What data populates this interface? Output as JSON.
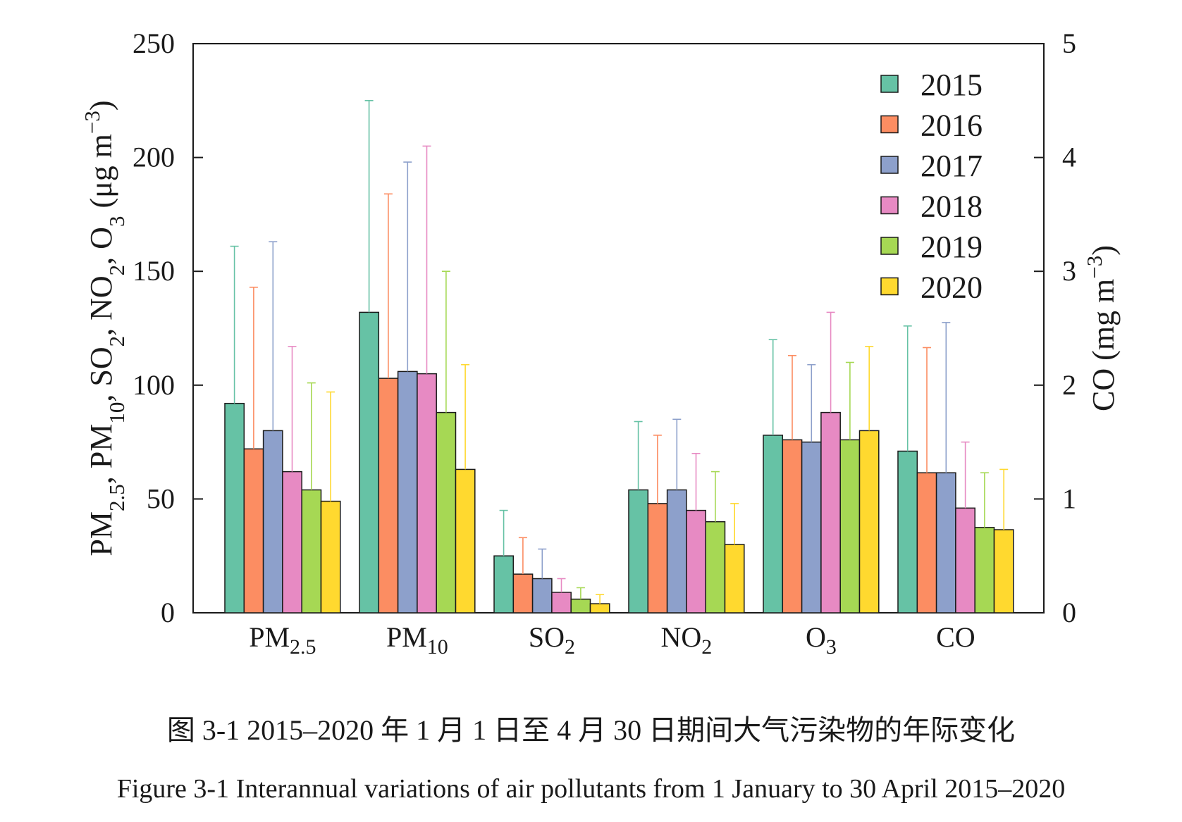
{
  "chart_data": {
    "type": "bar",
    "categories": [
      {
        "base": "PM",
        "sub": "2.5"
      },
      {
        "base": "PM",
        "sub": "10"
      },
      {
        "base": "SO",
        "sub": "2"
      },
      {
        "base": "NO",
        "sub": "2"
      },
      {
        "base": "O",
        "sub": "3"
      },
      {
        "base": "CO",
        "sub": ""
      }
    ],
    "series": [
      {
        "name": "2015",
        "color": "#66c2a5",
        "values": [
          92,
          132,
          25,
          54,
          78,
          1.42
        ],
        "upper": [
          161,
          225,
          45,
          84,
          120,
          2.52
        ]
      },
      {
        "name": "2016",
        "color": "#fc8d62",
        "values": [
          72,
          103,
          17,
          48,
          76,
          1.23
        ],
        "upper": [
          143,
          184,
          33,
          78,
          113,
          2.33
        ]
      },
      {
        "name": "2017",
        "color": "#8da0cb",
        "values": [
          80,
          106,
          15,
          54,
          75,
          1.23
        ],
        "upper": [
          163,
          198,
          28,
          85,
          109,
          2.55
        ]
      },
      {
        "name": "2018",
        "color": "#e78ac3",
        "values": [
          62,
          105,
          9,
          45,
          88,
          0.92
        ],
        "upper": [
          117,
          205,
          15,
          70,
          132,
          1.5
        ]
      },
      {
        "name": "2019",
        "color": "#a6d854",
        "values": [
          54,
          88,
          6,
          40,
          76,
          0.75
        ],
        "upper": [
          101,
          150,
          11,
          62,
          110,
          1.23
        ]
      },
      {
        "name": "2020",
        "color": "#ffd92f",
        "values": [
          49,
          63,
          4,
          30,
          80,
          0.73
        ],
        "upper": [
          97,
          109,
          8,
          48,
          117,
          1.26
        ]
      }
    ],
    "left_axis": {
      "label_parts": [
        {
          "t": "PM"
        },
        {
          "t": "2.5",
          "sub": true
        },
        {
          "t": ", PM"
        },
        {
          "t": "10",
          "sub": true
        },
        {
          "t": ", SO"
        },
        {
          "t": "2",
          "sub": true
        },
        {
          "t": ", NO"
        },
        {
          "t": "2",
          "sub": true
        },
        {
          "t": ", O"
        },
        {
          "t": "3",
          "sub": true
        },
        {
          "t": " (μg m"
        },
        {
          "t": "−3",
          "sup": true
        },
        {
          "t": ")"
        }
      ],
      "ylim": [
        0,
        250
      ],
      "ticks": [
        0,
        50,
        100,
        150,
        200,
        250
      ]
    },
    "right_axis": {
      "label_parts": [
        {
          "t": "CO (mg m"
        },
        {
          "t": "−3",
          "sup": true
        },
        {
          "t": ")"
        }
      ],
      "ylim": [
        0,
        5
      ],
      "ticks": [
        0,
        1,
        2,
        3,
        4,
        5
      ],
      "applies_to_category": "CO"
    },
    "error_bars": "upper only",
    "legend_position": "top-right",
    "grid": false
  },
  "caption": {
    "chinese": "图 3-1 2015–2020 年 1 月 1 日至 4 月 30 日期间大气污染物的年际变化",
    "english": "Figure 3-1 Interannual variations of air pollutants from 1 January to 30 April 2015–2020"
  }
}
